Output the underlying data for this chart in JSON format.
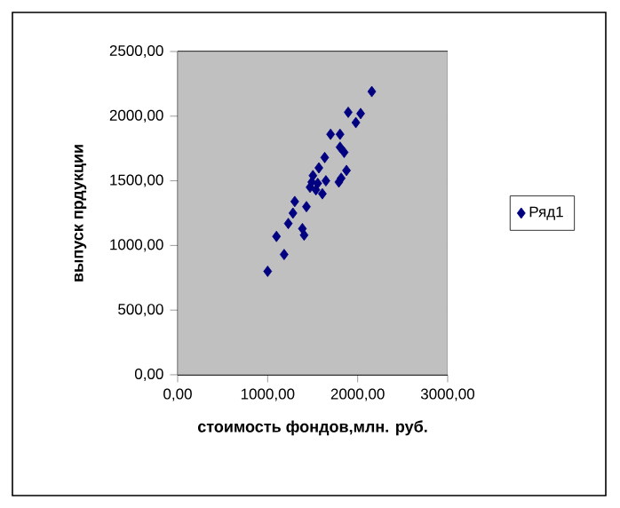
{
  "chart_data": {
    "type": "scatter",
    "xlabel": "стоимость фондов,млн. руб.",
    "ylabel": "выпуск прдукции",
    "x": [
      1000,
      1098,
      1183,
      1229,
      1281,
      1301,
      1386,
      1405,
      1431,
      1471,
      1490,
      1503,
      1516,
      1536,
      1556,
      1569,
      1608,
      1634,
      1647,
      1699,
      1791,
      1804,
      1804,
      1817,
      1850,
      1876,
      1895,
      1980,
      2033,
      2157
    ],
    "series": [
      {
        "name": "Ряд1",
        "color": "#000080",
        "values": [
          800,
          1070,
          930,
          1170,
          1250,
          1340,
          1130,
          1080,
          1300,
          1450,
          1490,
          1540,
          null,
          1430,
          1480,
          1600,
          1400,
          1680,
          1500,
          1860,
          1490,
          1860,
          1760,
          1520,
          1720,
          1580,
          2030,
          1950,
          2020,
          2190
        ]
      }
    ],
    "xlim": [
      0,
      3000
    ],
    "ylim": [
      0,
      2500
    ],
    "xticks": [
      {
        "value": 0,
        "label": "0,00"
      },
      {
        "value": 1000,
        "label": "1000,00"
      },
      {
        "value": 2000,
        "label": "2000,00"
      },
      {
        "value": 3000,
        "label": "3000,00"
      }
    ],
    "yticks": [
      {
        "value": 0,
        "label": "0,00"
      },
      {
        "value": 500,
        "label": "500,00"
      },
      {
        "value": 1000,
        "label": "1000,00"
      },
      {
        "value": 1500,
        "label": "1500,00"
      },
      {
        "value": 2000,
        "label": "2000,00"
      },
      {
        "value": 2500,
        "label": "2500,00"
      }
    ],
    "grid": "y",
    "legend": "right",
    "marker": "diamond"
  }
}
